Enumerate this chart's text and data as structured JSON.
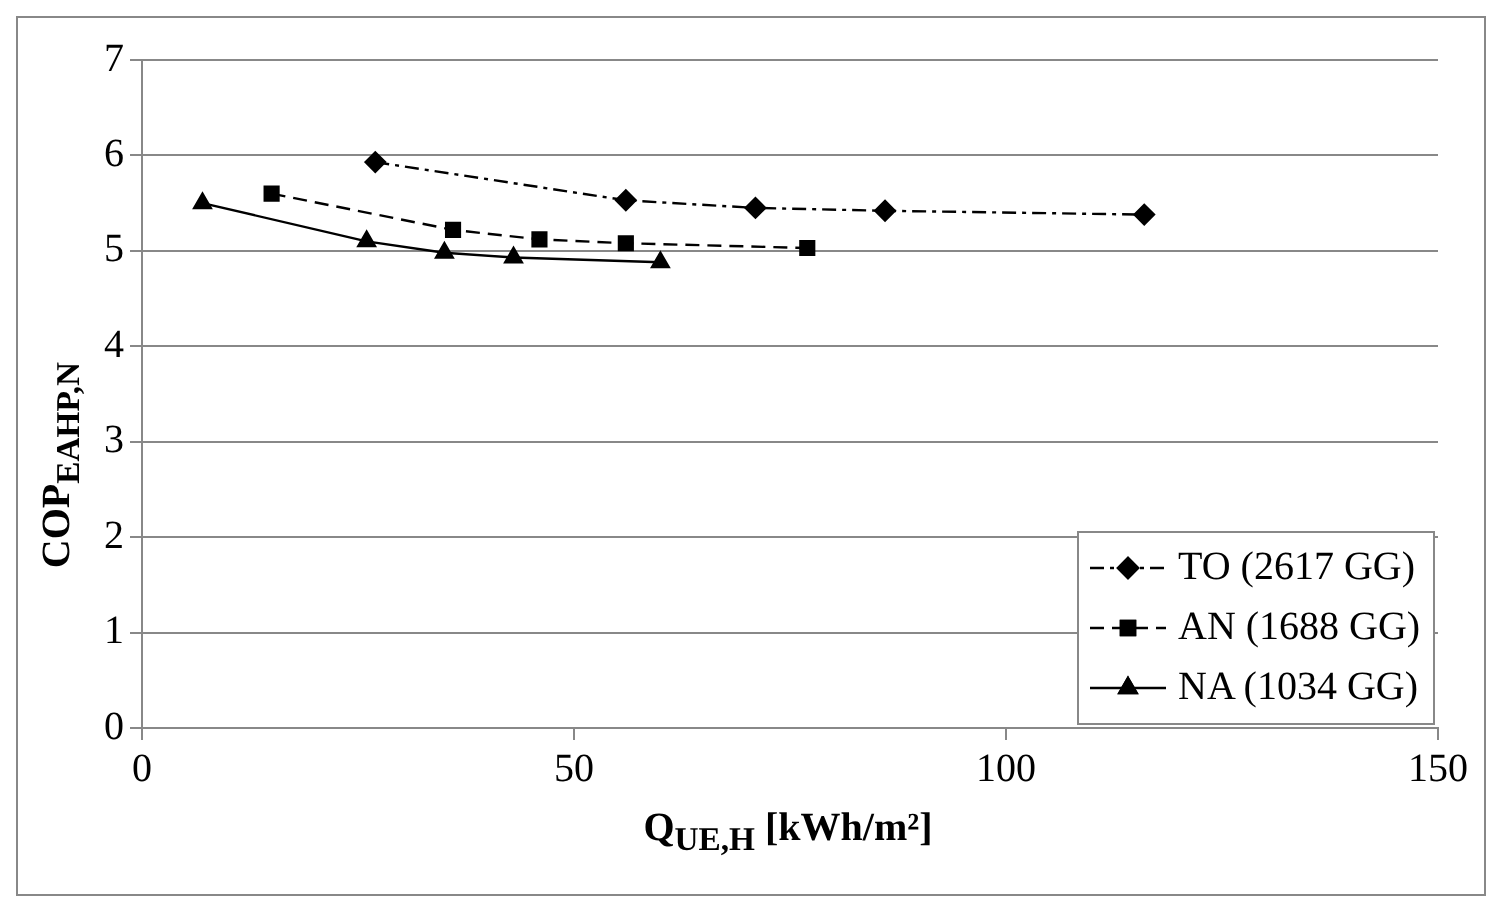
{
  "chart_data": {
    "type": "line",
    "xlabel": "Q$_{UE,H}$ [kWh/m²]",
    "ylabel": "COP$_{EAHP,N}$",
    "xlim": [
      0,
      150
    ],
    "xticks": [
      0,
      50,
      100,
      150
    ],
    "ylim": [
      0,
      7
    ],
    "yticks": [
      0,
      1,
      2,
      3,
      4,
      5,
      6,
      7
    ],
    "grid": "y",
    "legend": "bottom right",
    "series": [
      {
        "name": "TO (2617 GG)",
        "color": "#000000",
        "marker": "diamond",
        "line_style": "dashdot",
        "x": [
          27,
          56,
          71,
          86,
          116
        ],
        "values": [
          5.93,
          5.53,
          5.45,
          5.42,
          5.38
        ]
      },
      {
        "name": "AN (1688 GG)",
        "color": "#000000",
        "marker": "square",
        "line_style": "dashed",
        "x": [
          15,
          36,
          46,
          56,
          77
        ],
        "values": [
          5.6,
          5.22,
          5.12,
          5.08,
          5.03
        ]
      },
      {
        "name": "NA (1034 GG)",
        "color": "#000000",
        "marker": "triangle",
        "line_style": "solid",
        "x": [
          7,
          26,
          35,
          43,
          60
        ],
        "values": [
          5.5,
          5.1,
          4.98,
          4.93,
          4.88
        ]
      }
    ]
  }
}
